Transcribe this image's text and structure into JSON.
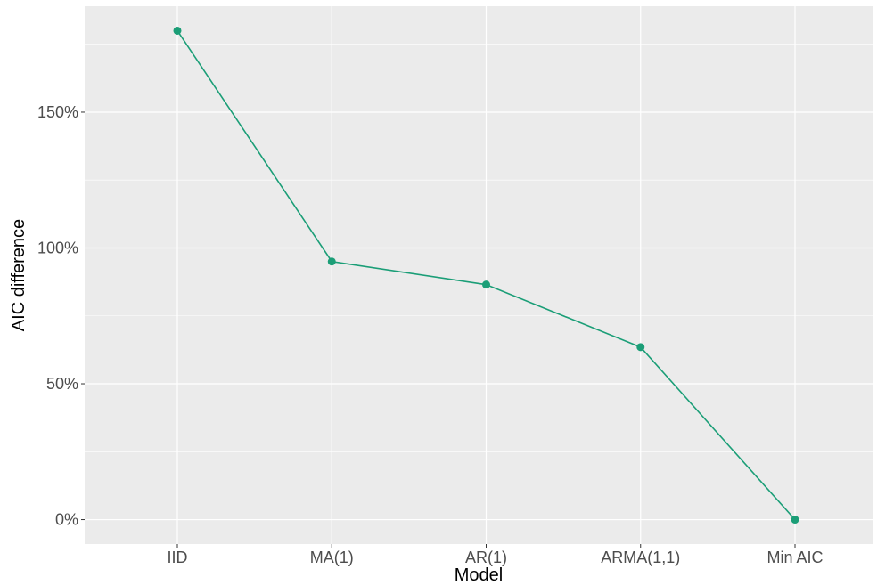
{
  "chart_data": {
    "type": "line",
    "title": "",
    "xlabel": "Model",
    "ylabel": "AIC difference",
    "categories": [
      "IID",
      "MA(1)",
      "AR(1)",
      "ARMA(1,1)",
      "Min AIC"
    ],
    "series": [
      {
        "values": [
          1.8,
          0.95,
          0.865,
          0.635,
          0.0
        ]
      }
    ],
    "ylim": [
      -0.09,
      1.89
    ],
    "yticks": [
      0,
      0.5,
      1.0,
      1.5
    ],
    "ytick_labels": [
      "0%",
      "50%",
      "100%",
      "150%"
    ],
    "grid": true,
    "legend": "none",
    "colors": {
      "line": "#1b9e77",
      "panel": "#ebebeb",
      "grid": "#ffffff",
      "tick_text": "#4d4d4d",
      "axis_text": "#000000"
    }
  }
}
